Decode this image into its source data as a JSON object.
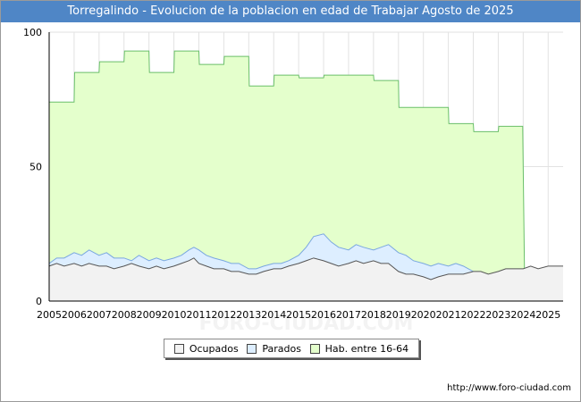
{
  "header": {
    "title": "Torregalindo - Evolucion de la poblacion en edad de Trabajar Agosto de 2025"
  },
  "footer": {
    "url": "http://www.foro-ciudad.com"
  },
  "watermark": "FORO-CIUDAD.COM",
  "colors": {
    "ocupados_fill": "#f2f2f2",
    "ocupados_line": "#555555",
    "parados_fill": "#ddeeff",
    "parados_line": "#7aa7e0",
    "hab_fill": "#e4ffcc",
    "hab_line": "#6abf6a",
    "title_bg": "#4f86c6"
  },
  "legend": {
    "items": [
      {
        "label": "Ocupados",
        "color": "#f2f2f2"
      },
      {
        "label": "Parados",
        "color": "#ddeeff"
      },
      {
        "label": "Hab. entre 16-64",
        "color": "#e4ffcc"
      }
    ]
  },
  "chart_data": {
    "type": "area",
    "title": "Torregalindo - Evolucion de la poblacion en edad de Trabajar Agosto de 2025",
    "xlim": [
      2005,
      2025.6
    ],
    "ylim": [
      0,
      100
    ],
    "x_ticks": [
      2005,
      2006,
      2007,
      2008,
      2009,
      2010,
      2011,
      2012,
      2013,
      2014,
      2015,
      2016,
      2017,
      2018,
      2019,
      2020,
      2021,
      2022,
      2023,
      2024,
      2025
    ],
    "y_ticks": [
      0,
      50,
      100
    ],
    "grid": true,
    "legend_position": "bottom",
    "series": [
      {
        "name": "Hab. entre 16-64",
        "x": [
          2005,
          2006,
          2006.02,
          2007,
          2007.02,
          2008,
          2008.02,
          2009,
          2009.02,
          2010,
          2010.02,
          2011,
          2011.02,
          2012,
          2012.02,
          2013,
          2013.02,
          2014,
          2014.02,
          2015,
          2015.02,
          2016,
          2016.02,
          2017,
          2017.02,
          2018,
          2018.02,
          2019,
          2019.02,
          2020,
          2020.02,
          2021,
          2021.02,
          2022,
          2022.02,
          2023,
          2023.02,
          2023.98,
          2024.05
        ],
        "values": [
          74,
          74,
          85,
          85,
          89,
          89,
          93,
          93,
          85,
          85,
          93,
          93,
          88,
          88,
          91,
          91,
          80,
          80,
          84,
          84,
          83,
          83,
          84,
          84,
          84,
          84,
          82,
          82,
          72,
          72,
          72,
          72,
          66,
          66,
          63,
          63,
          65,
          65,
          12
        ]
      },
      {
        "name": "Parados",
        "x": [
          2005,
          2005.3,
          2005.6,
          2006,
          2006.3,
          2006.6,
          2007,
          2007.3,
          2007.6,
          2008,
          2008.3,
          2008.6,
          2009,
          2009.3,
          2009.6,
          2010,
          2010.3,
          2010.6,
          2010.8,
          2011,
          2011.3,
          2011.6,
          2012,
          2012.3,
          2012.6,
          2013,
          2013.3,
          2013.6,
          2014,
          2014.3,
          2014.6,
          2015,
          2015.3,
          2015.6,
          2016,
          2016.3,
          2016.6,
          2017,
          2017.3,
          2017.6,
          2018,
          2018.3,
          2018.6,
          2019,
          2019.3,
          2019.6,
          2020,
          2020.3,
          2020.6,
          2021,
          2021.3,
          2021.6,
          2022
        ],
        "values": [
          14,
          16,
          16,
          18,
          17,
          19,
          17,
          18,
          16,
          16,
          15,
          17,
          15,
          16,
          15,
          16,
          17,
          19,
          20,
          19,
          17,
          16,
          15,
          14,
          14,
          12,
          12,
          13,
          14,
          14,
          15,
          17,
          20,
          24,
          25,
          22,
          20,
          19,
          21,
          20,
          19,
          20,
          21,
          18,
          17,
          15,
          14,
          13,
          14,
          13,
          14,
          13,
          11
        ]
      },
      {
        "name": "Ocupados",
        "x": [
          2005,
          2005.3,
          2005.6,
          2006,
          2006.3,
          2006.6,
          2007,
          2007.3,
          2007.6,
          2008,
          2008.3,
          2008.6,
          2009,
          2009.3,
          2009.6,
          2010,
          2010.3,
          2010.6,
          2010.8,
          2011,
          2011.3,
          2011.6,
          2012,
          2012.3,
          2012.6,
          2013,
          2013.3,
          2013.6,
          2014,
          2014.3,
          2014.6,
          2015,
          2015.3,
          2015.6,
          2016,
          2016.3,
          2016.6,
          2017,
          2017.3,
          2017.6,
          2018,
          2018.3,
          2018.6,
          2019,
          2019.3,
          2019.6,
          2020,
          2020.3,
          2020.6,
          2021,
          2021.3,
          2021.6,
          2022,
          2022.3,
          2022.6,
          2023,
          2023.3,
          2023.6,
          2024,
          2024.3,
          2024.6,
          2025,
          2025.6
        ],
        "values": [
          13,
          14,
          13,
          14,
          13,
          14,
          13,
          13,
          12,
          13,
          14,
          13,
          12,
          13,
          12,
          13,
          14,
          15,
          16,
          14,
          13,
          12,
          12,
          11,
          11,
          10,
          10,
          11,
          12,
          12,
          13,
          14,
          15,
          16,
          15,
          14,
          13,
          14,
          15,
          14,
          15,
          14,
          14,
          11,
          10,
          10,
          9,
          8,
          9,
          10,
          10,
          10,
          11,
          11,
          10,
          11,
          12,
          12,
          12,
          13,
          12,
          13,
          13
        ]
      }
    ]
  }
}
